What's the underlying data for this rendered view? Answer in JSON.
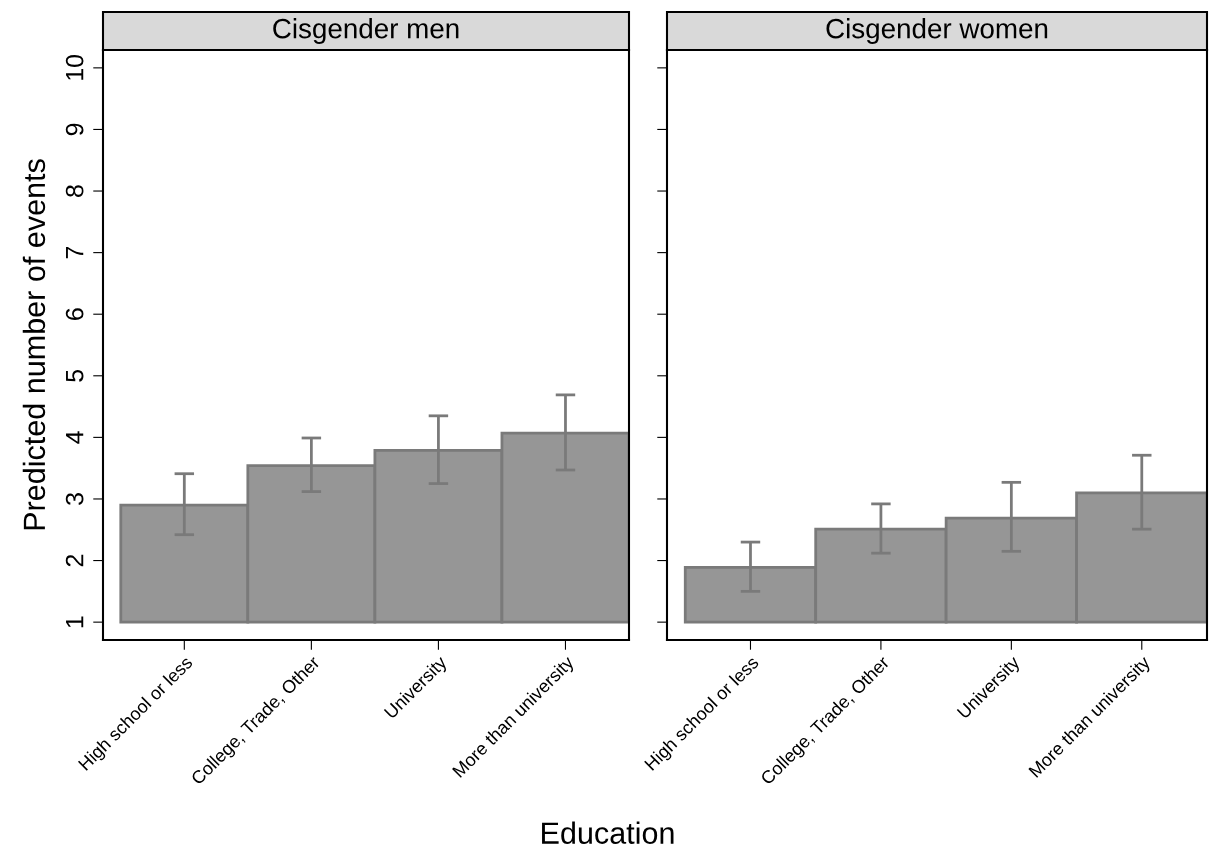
{
  "chart_data": [
    {
      "type": "bar",
      "title": "Cisgender men",
      "xlabel": "Education",
      "ylabel": "Predicted number of events",
      "categories": [
        "High school or less",
        "College, Trade, Other",
        "University",
        "More than university"
      ],
      "base": [
        1,
        1,
        1,
        1
      ],
      "values": [
        1.9,
        2.54,
        2.79,
        3.07
      ],
      "errors": [
        [
          2.42,
          3.41
        ],
        [
          3.12,
          3.99
        ],
        [
          3.25,
          4.35
        ],
        [
          3.47,
          4.69
        ]
      ],
      "color": "#969696",
      "ylim": [
        0.71,
        10.29
      ],
      "yticks": [
        1,
        2,
        3,
        4,
        5,
        6,
        7,
        8,
        9,
        10
      ],
      "grid": false
    },
    {
      "type": "bar",
      "title": "Cisgender women",
      "categories": [
        "High school or less",
        "College, Trade, Other",
        "University",
        "More than university"
      ],
      "base": [
        1,
        1,
        1,
        1
      ],
      "values": [
        0.89,
        1.51,
        1.69,
        2.1
      ],
      "errors": [
        [
          1.5,
          2.3
        ],
        [
          2.12,
          2.92
        ],
        [
          2.15,
          3.27
        ],
        [
          2.51,
          3.71
        ]
      ],
      "color": "#969696",
      "ylim": [
        0.71,
        10.29
      ],
      "yticks": [
        1,
        2,
        3,
        4,
        5,
        6,
        7,
        8,
        9,
        10
      ],
      "tick_labels": "x",
      "grid": false
    }
  ]
}
